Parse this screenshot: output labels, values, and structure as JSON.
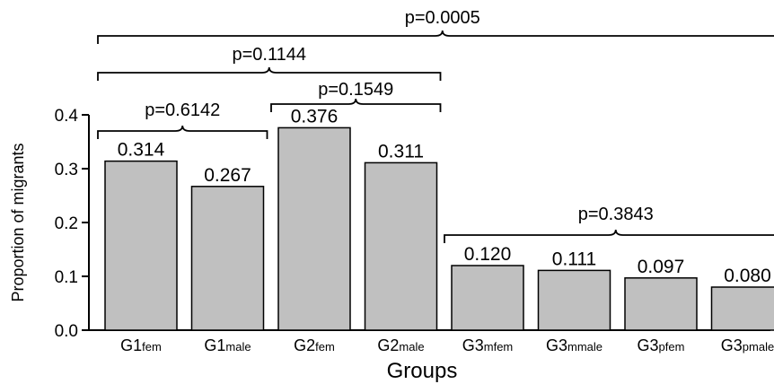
{
  "chart_data": {
    "type": "bar",
    "categories": [
      {
        "main": "G1",
        "sub": "fem"
      },
      {
        "main": "G1",
        "sub": "male"
      },
      {
        "main": "G2",
        "sub": "fem"
      },
      {
        "main": "G2",
        "sub": "male"
      },
      {
        "main": "G3",
        "sub": "mfem"
      },
      {
        "main": "G3",
        "sub": "mmale"
      },
      {
        "main": "G3",
        "sub": "pfem"
      },
      {
        "main": "G3",
        "sub": "pmale"
      }
    ],
    "values": [
      0.314,
      0.267,
      0.376,
      0.311,
      0.12,
      0.111,
      0.097,
      0.08
    ],
    "value_labels": [
      "0.314",
      "0.267",
      "0.376",
      "0.311",
      "0.120",
      "0.111",
      "0.097",
      "0.080"
    ],
    "xlabel": "Groups",
    "ylabel": "Proportion of migrants",
    "ylim": [
      0,
      0.4
    ],
    "yticks": [
      "0.0",
      "0.1",
      "0.2",
      "0.3",
      "0.4"
    ],
    "grid": false,
    "bar_color": "#c0c0c0",
    "comparisons": [
      {
        "label": "p=0.0005",
        "from": 0,
        "to": 7
      },
      {
        "label": "p=0.1144",
        "from": 0,
        "to": 3
      },
      {
        "label": "p=0.1549",
        "from": 2,
        "to": 3
      },
      {
        "label": "p=0.6142",
        "from": 0,
        "to": 1
      },
      {
        "label": "p=0.3843",
        "from": 4,
        "to": 7
      }
    ]
  }
}
